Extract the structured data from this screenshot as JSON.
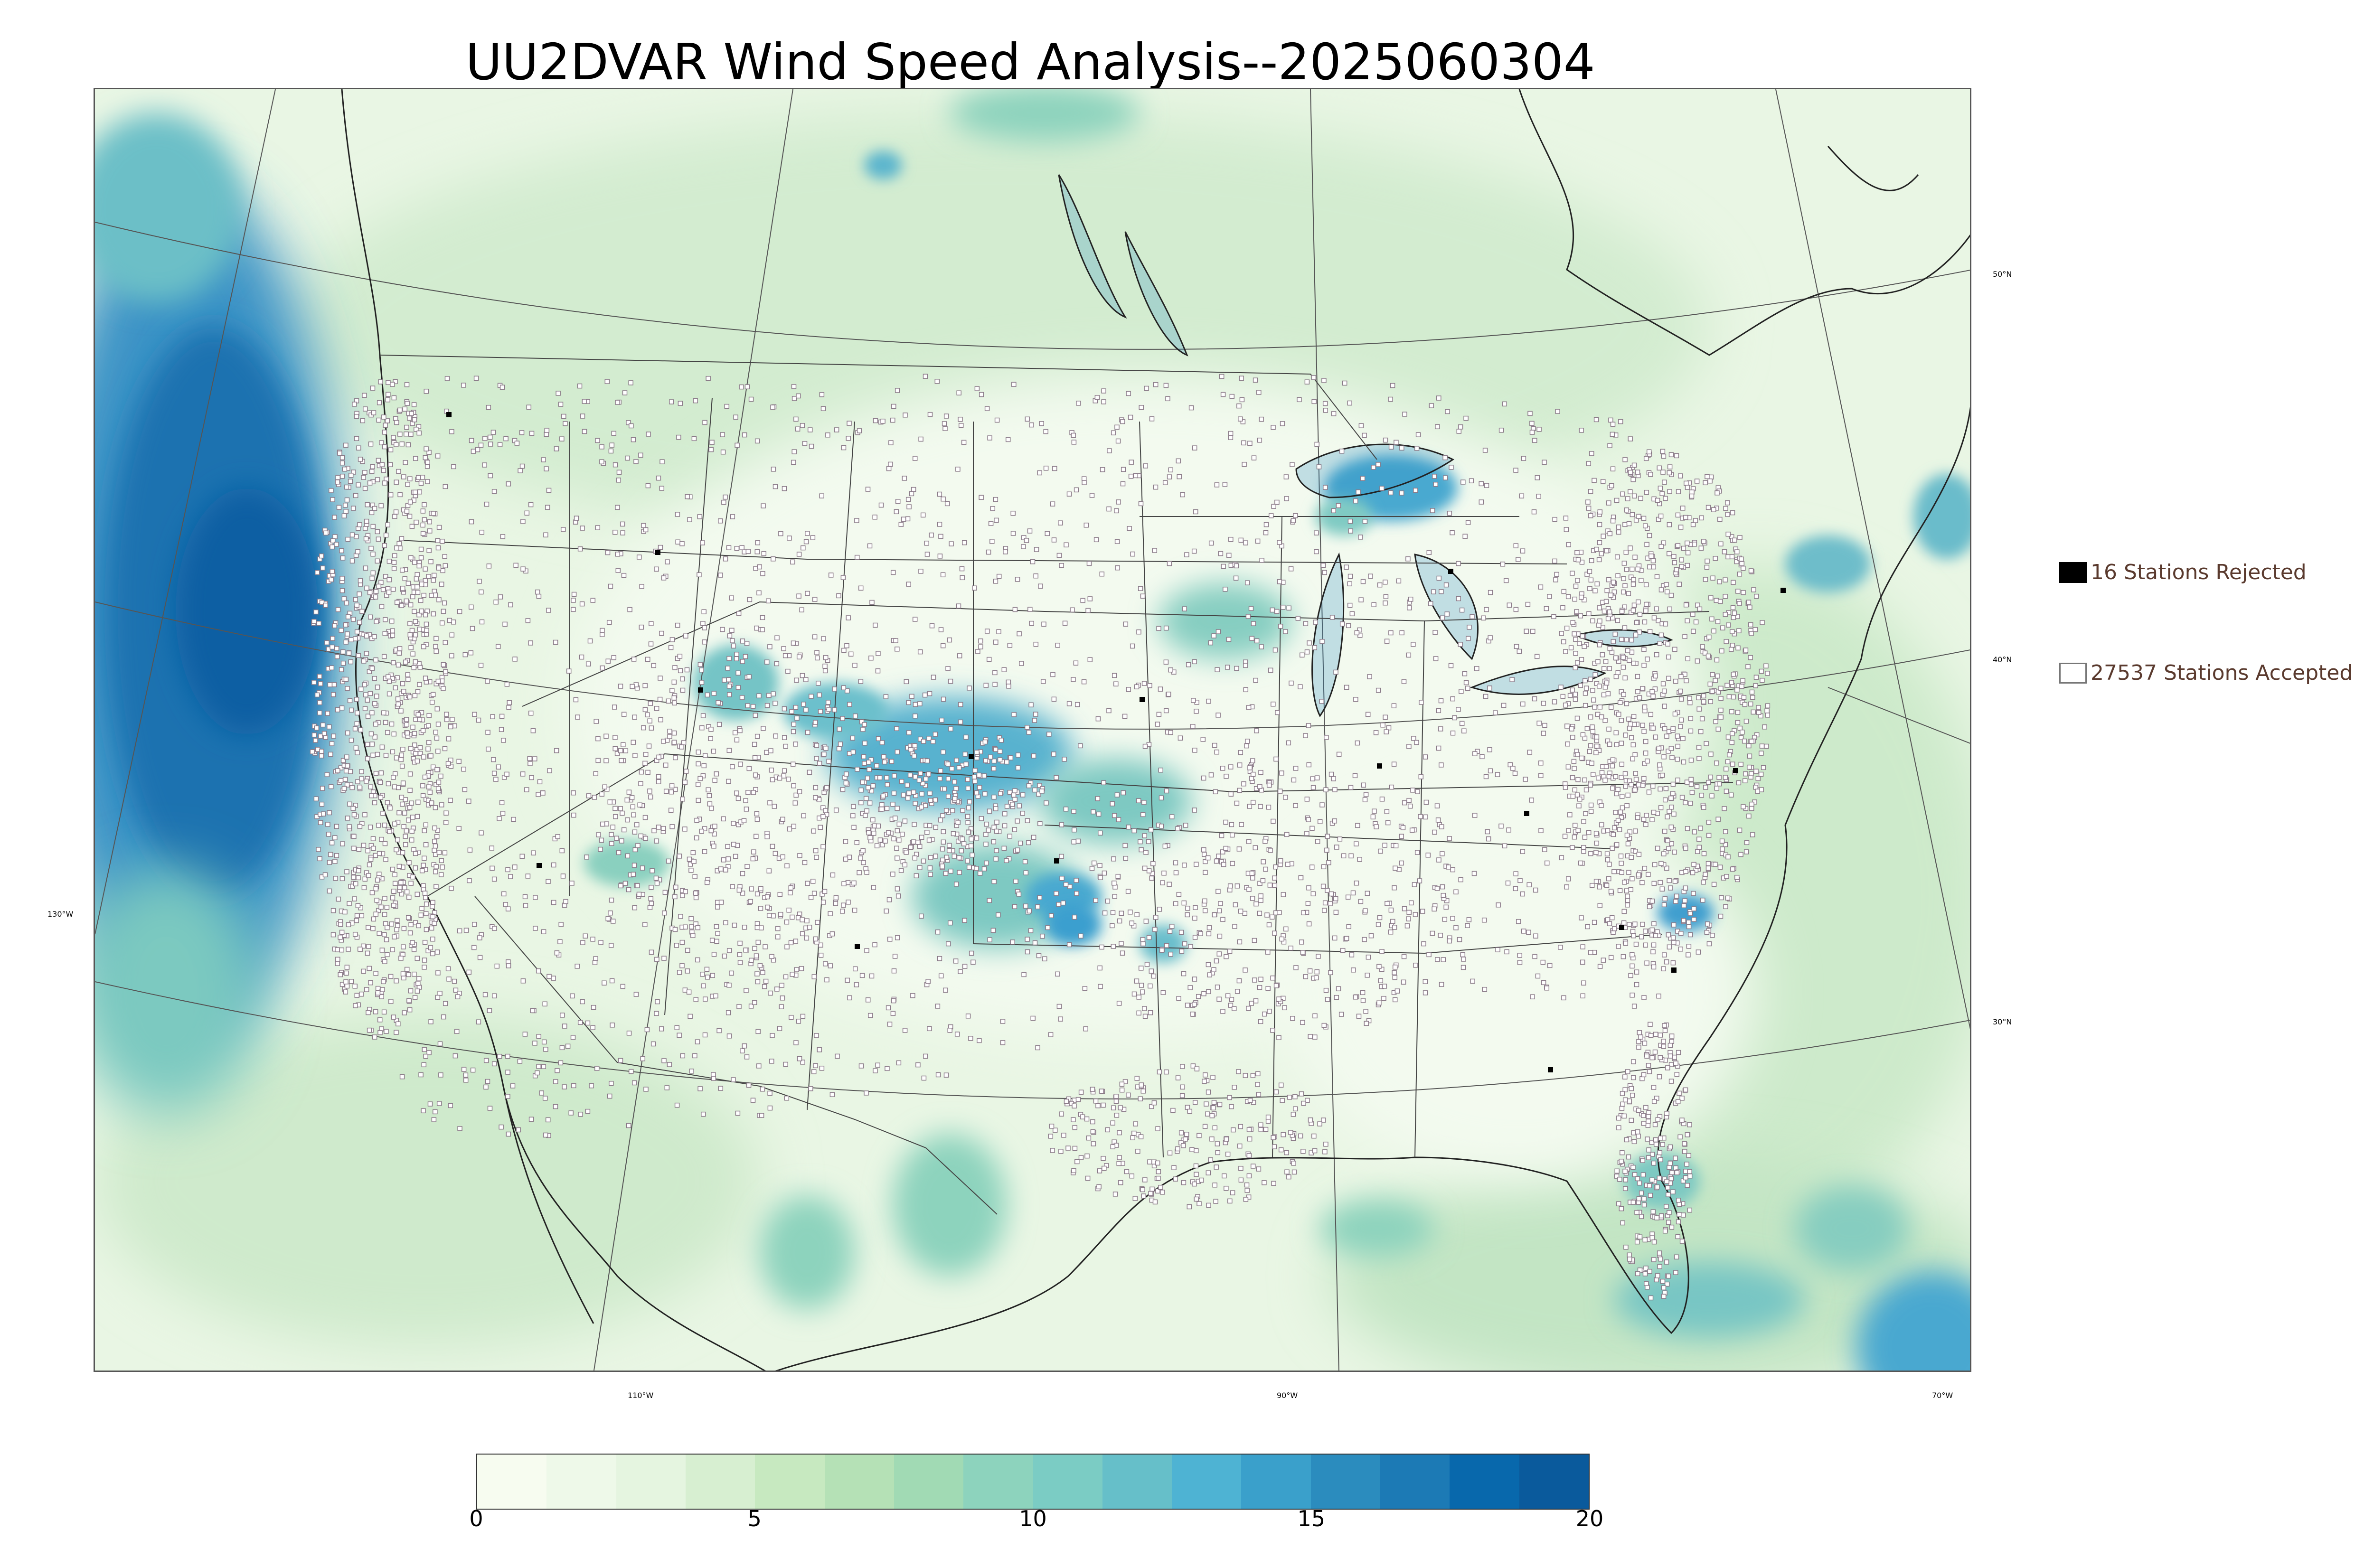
{
  "title": "UU2DVAR Wind Speed Analysis--2025060304",
  "map": {
    "projection": "lambert-conformal",
    "field": "wind speed",
    "latitude_labels": [
      "50°N",
      "40°N",
      "30°N"
    ],
    "longitude_labels": [
      "130°W",
      "110°W",
      "90°W",
      "70°W"
    ]
  },
  "legend": {
    "rejected": {
      "label": "16 Stations Rejected",
      "marker": "filled-black-square"
    },
    "accepted": {
      "label": "27537 Stations Accepted",
      "marker": "open-square"
    }
  },
  "colorbar": {
    "min": 0,
    "max": 20,
    "tick_labels": [
      "0",
      "5",
      "10",
      "15",
      "20"
    ],
    "colormap": "GnBu",
    "colors": [
      "#f7fcf0",
      "#eef9e9",
      "#e5f5e0",
      "#d7efd1",
      "#c7e9c0",
      "#b5e1b6",
      "#a1dab4",
      "#8dd3bd",
      "#7bccc4",
      "#66bfc9",
      "#4eb3d3",
      "#3aa0cb",
      "#2b8cbe",
      "#1c7ab5",
      "#0868ac",
      "#0a5a9c"
    ]
  },
  "colors": {
    "legend_text": "#5a3a2e",
    "accepted_marker_edge": "#8a7a88",
    "rejected_marker": "#000000",
    "map_lines": "#333333"
  }
}
